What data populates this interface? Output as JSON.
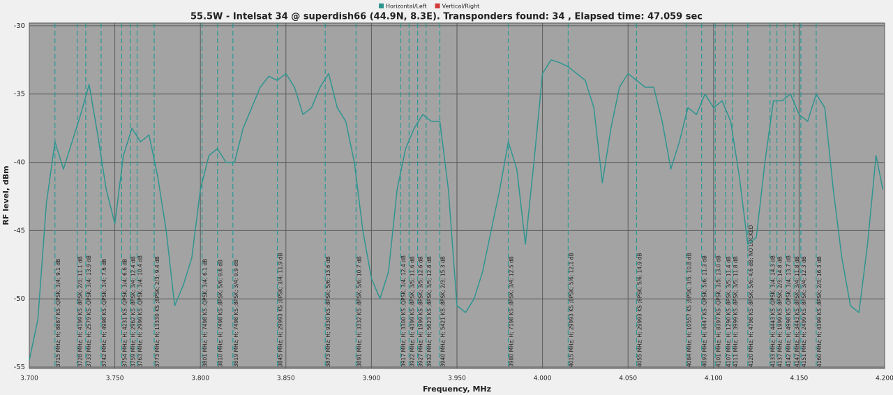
{
  "chart_data": {
    "type": "line",
    "title": "55.5W - Intelsat 34 @ superdish66 (44.9N, 8.3E). Transponders found: 34 , Elapsed time: 47.059 sec",
    "xlabel": "Frequency, MHz",
    "ylabel": "RF level, dBm",
    "xlim": [
      3.7,
      4.2
    ],
    "ylim": [
      -55.1,
      -29.8
    ],
    "xticks": [
      {
        "value": 3.7,
        "label": "3.700"
      },
      {
        "value": 3.75,
        "label": "3.750"
      },
      {
        "value": 3.8,
        "label": "3.800"
      },
      {
        "value": 3.85,
        "label": "3.850"
      },
      {
        "value": 3.9,
        "label": "3.900"
      },
      {
        "value": 3.95,
        "label": "3.950"
      },
      {
        "value": 4.0,
        "label": "4.000"
      },
      {
        "value": 4.05,
        "label": "4.050"
      },
      {
        "value": 4.1,
        "label": "4.100"
      },
      {
        "value": 4.15,
        "label": "4.150"
      },
      {
        "value": 4.2,
        "label": "4.200"
      }
    ],
    "yticks": [
      -30,
      -35,
      -40,
      -45,
      -50,
      -55
    ],
    "grid": true,
    "x": [
      3.7,
      3.705,
      3.71,
      3.715,
      3.72,
      3.725,
      3.73,
      3.735,
      3.74,
      3.745,
      3.75,
      3.755,
      3.76,
      3.765,
      3.77,
      3.775,
      3.78,
      3.785,
      3.79,
      3.795,
      3.8,
      3.805,
      3.81,
      3.815,
      3.82,
      3.825,
      3.83,
      3.835,
      3.84,
      3.845,
      3.85,
      3.855,
      3.86,
      3.865,
      3.87,
      3.875,
      3.88,
      3.885,
      3.89,
      3.895,
      3.9,
      3.905,
      3.91,
      3.915,
      3.92,
      3.925,
      3.93,
      3.935,
      3.94,
      3.945,
      3.95,
      3.955,
      3.96,
      3.965,
      3.97,
      3.975,
      3.98,
      3.985,
      3.99,
      3.995,
      4.0,
      4.005,
      4.01,
      4.015,
      4.02,
      4.025,
      4.03,
      4.035,
      4.04,
      4.045,
      4.05,
      4.055,
      4.06,
      4.065,
      4.07,
      4.075,
      4.08,
      4.085,
      4.09,
      4.095,
      4.1,
      4.105,
      4.11,
      4.115,
      4.12,
      4.125,
      4.13,
      4.135,
      4.14,
      4.145,
      4.15,
      4.155,
      4.16,
      4.165,
      4.17,
      4.175,
      4.18,
      4.185,
      4.19,
      4.195,
      4.199
    ],
    "series": [
      {
        "name": "Horizontal/Left",
        "color": "#2e9590",
        "values": [
          -54.5,
          -51.5,
          -43,
          -38.5,
          -40.5,
          -38.5,
          -36.5,
          -34.3,
          -38,
          -42,
          -44.5,
          -39.5,
          -37.5,
          -38.5,
          -38,
          -41,
          -45,
          -50.5,
          -49,
          -47,
          -42,
          -39.5,
          -39,
          -40,
          -40,
          -37.5,
          -36,
          -34.5,
          -33.7,
          -34,
          -33.5,
          -34.5,
          -36.5,
          -36,
          -34.5,
          -33.5,
          -36,
          -37,
          -40,
          -45,
          -48.5,
          -50,
          -48,
          -42,
          -39,
          -37.5,
          -36.5,
          -37,
          -37,
          -42,
          -50.5,
          -51,
          -50,
          -48,
          -45,
          -42,
          -38.5,
          -40.5,
          -46,
          -40,
          -33.5,
          -32.5,
          -32.7,
          -33,
          -33.5,
          -34,
          -36,
          -41.5,
          -37.5,
          -34.5,
          -33.5,
          -34,
          -34.5,
          -34.5,
          -37,
          -40.5,
          -38.5,
          -36,
          -36.5,
          -35,
          -36,
          -35.5,
          -37,
          -41,
          -46,
          -45.5,
          -40,
          -35.5,
          -35.5,
          -35,
          -36.5,
          -37,
          -35,
          -36,
          -42,
          -47,
          -50.5,
          -51,
          -46,
          -39.5,
          -42
        ]
      },
      {
        "name": "Vertical/Right",
        "color": "#d43a3a",
        "values": [
          null,
          null,
          null,
          null,
          null,
          null,
          null,
          null,
          null,
          null,
          null,
          null,
          null,
          null,
          null,
          null,
          null,
          null,
          null,
          null,
          null,
          null,
          null,
          null,
          null,
          null,
          null,
          null,
          null,
          null,
          null,
          null,
          null,
          null,
          null,
          null,
          null,
          null,
          null,
          null,
          null,
          null,
          null,
          null,
          null,
          null,
          null,
          null,
          null,
          null,
          null,
          null,
          null,
          null,
          null,
          null,
          null,
          null,
          null,
          null,
          null,
          null,
          null,
          null,
          null,
          null,
          null,
          null,
          null,
          null,
          null,
          null,
          null,
          null,
          null,
          null,
          null,
          null,
          null,
          null,
          null,
          null,
          null,
          null,
          null,
          null,
          null,
          null,
          null,
          null,
          null,
          null,
          null,
          null,
          null,
          null,
          null,
          null,
          null,
          null,
          null
        ]
      }
    ],
    "annotations": [
      {
        "x": 3.715,
        "text": "3715 MHz; H; 8887 KS ;QPSK; 3/4; 9.1 dB"
      },
      {
        "x": 3.728,
        "text": "3728 MHz; H; 4199 KS ;8PSK; 2/3; 11.1 dB"
      },
      {
        "x": 3.733,
        "text": "3733 MHz; H; 2579 KS ;QPSK; 3/4; 13.9 dB"
      },
      {
        "x": 3.742,
        "text": "3742 MHz; H; 4998 KS ;QPSK; 3/4; 7.6 dB"
      },
      {
        "x": 3.754,
        "text": "3754 MHz; H; 4231 KS ;QPSK; 3/4; 6.6 dB"
      },
      {
        "x": 3.759,
        "text": "3759 MHz; H; 2962 KS ;8PSK; 3/4; 12.4 dB"
      },
      {
        "x": 3.763,
        "text": "3763 MHz; H; 2999 KS ;QPSK; 3/4; 10.4 dB"
      },
      {
        "x": 3.773,
        "text": "3773 MHz; H; 13330 KS ;8PSK; 2/3; 9.4 dB"
      },
      {
        "x": 3.801,
        "text": "3801 MHz; H; 7498 KS ;QPSK; 3/4; 6.1 dB"
      },
      {
        "x": 3.81,
        "text": "3810 MHz; H; 7498 KS ;8PSK; 5/6; 9.6 dB"
      },
      {
        "x": 3.819,
        "text": "3819 MHz; H; 7498 KS ;8PSK; 3/4; 9.9 dB"
      },
      {
        "x": 3.845,
        "text": "3845 MHz; H; 29993 KS ;8PSK; 3/4; 11.9 dB"
      },
      {
        "x": 3.873,
        "text": "3873 MHz; H; 9330 KS ;8PSK; 5/6; 13.6 dB"
      },
      {
        "x": 3.891,
        "text": "3891 MHz; H; 3332 KS ;8PSK; 5/6; 10.7 dB"
      },
      {
        "x": 3.917,
        "text": "3917 MHz; H; 3300 KS ;QPSK; 3/4; 12.4 dB"
      },
      {
        "x": 3.922,
        "text": "3922 MHz; H; 4399 KS ;8PSK; 3/5; 11.6 dB"
      },
      {
        "x": 3.927,
        "text": "3927 MHz; H; 1999 KS ;8PSK; 3/5; 12.6 dB"
      },
      {
        "x": 3.932,
        "text": "3932 MHz; H; 5623 KS ;8PSK; 3/5; 12.8 dB"
      },
      {
        "x": 3.94,
        "text": "3940 MHz; H; 5421 KS ;8PSK; 2/3; 15.3 dB"
      },
      {
        "x": 3.98,
        "text": "3980 MHz; H; 7198 KS ;8PSK; 3/4; 12.5 dB"
      },
      {
        "x": 4.015,
        "text": "4015 MHz; H; 29993 KS ;8PSK; 5/6; 12.1 dB"
      },
      {
        "x": 4.055,
        "text": "4055 MHz; H; 29993 KS ;8PSK; 5/6; 14.9 dB"
      },
      {
        "x": 4.084,
        "text": "4084 MHz; H; 10557 KS ;8PSK; 3/5; 10.8 dB"
      },
      {
        "x": 4.093,
        "text": "4093 MHz; H; 4447 KS ;QPSK; 5/6; 11.3 dB"
      },
      {
        "x": 4.101,
        "text": "4101 MHz; H; 8397 KS ;QPSK; 3/5; 13.0 dB"
      },
      {
        "x": 4.107,
        "text": "4107 MHz; H; 1290 KS ;8PSK; 3/5; 11.4 dB"
      },
      {
        "x": 4.111,
        "text": "4111 MHz; H; 3999 KS ;8PSK; 3/5; 11.8 dB"
      },
      {
        "x": 4.12,
        "text": "4120 MHz; H; 4798 KS ;8PSK; 5/6; 4.6 dB; NO LOCKED"
      },
      {
        "x": 4.133,
        "text": "4133 MHz; H; 4443 KS ;QPSK; 3/4; 14.3 dB"
      },
      {
        "x": 4.137,
        "text": "4137 MHz; H; 1999 KS ;8PSK; 2/3; 14.8 dB"
      },
      {
        "x": 4.142,
        "text": "4142 MHz; H; 4998 KS ;QPSK; 3/4; 13.7 dB"
      },
      {
        "x": 4.147,
        "text": "4147 MHz; H; 3443 KS ;8PSK; 3/4; 11.8 dB"
      },
      {
        "x": 4.151,
        "text": "4151 MHz; H; 2499 KS ;8PSK; 3/4; 12.3 dB"
      },
      {
        "x": 4.16,
        "text": "4160 MHz; H; 4399 KS ;8PSK; 2/3; 16.3 dB"
      }
    ]
  }
}
